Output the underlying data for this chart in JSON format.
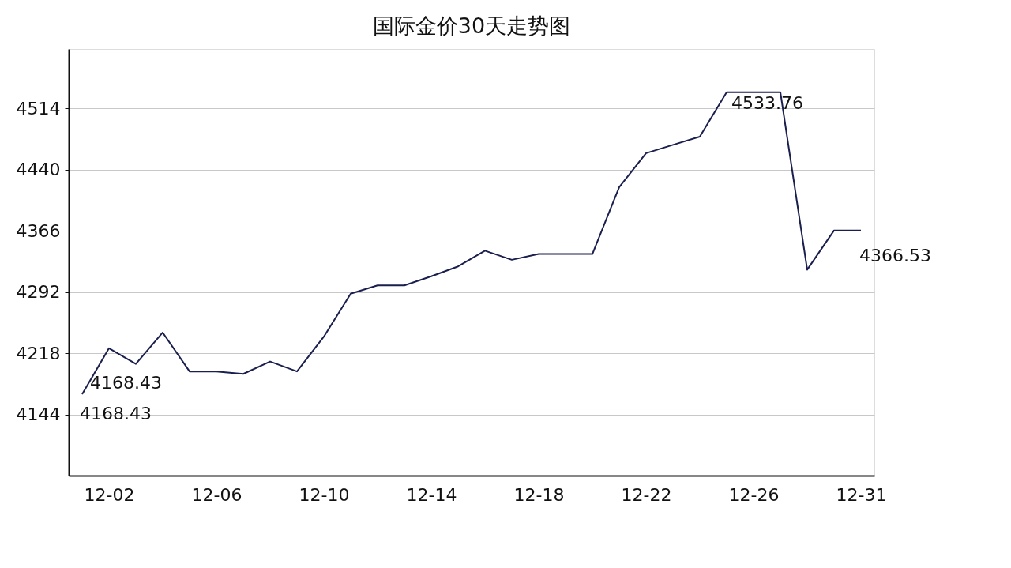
{
  "chart_data": {
    "type": "line",
    "title": "国际金价30天走势图",
    "categories": [
      null,
      "12-02",
      null,
      null,
      null,
      "12-06",
      null,
      null,
      null,
      "12-10",
      null,
      null,
      null,
      "12-14",
      null,
      null,
      null,
      "12-18",
      null,
      null,
      null,
      "12-22",
      null,
      null,
      null,
      "12-26",
      null,
      null,
      null,
      "12-31"
    ],
    "series": [
      {
        "color": "#1a1f4e",
        "values": [
          4168.43,
          4224,
          4205,
          4243,
          4196,
          4196,
          4193,
          4208,
          4196,
          4238,
          4290,
          4300,
          4300,
          4311,
          4323,
          4342,
          4331,
          4338,
          4338,
          4338,
          4419,
          4460,
          4470,
          4480,
          4533.76,
          4533.76,
          4533.76,
          4319,
          4366.53,
          4366.53
        ],
        "value_labels": [
          "4168.43",
          null,
          null,
          null,
          null,
          null,
          null,
          null,
          null,
          null,
          null,
          null,
          null,
          null,
          null,
          null,
          null,
          null,
          null,
          null,
          null,
          null,
          null,
          null,
          "4533.76",
          null,
          null,
          null,
          null,
          "4366.53"
        ]
      }
    ],
    "annotations": [
      "4168.43"
    ],
    "ylim": [
      4070,
      4586
    ],
    "yticks": [
      4144,
      4218,
      4292,
      4366,
      4440,
      4514
    ],
    "grid": "y",
    "marker": "none",
    "line_style": "solid"
  }
}
